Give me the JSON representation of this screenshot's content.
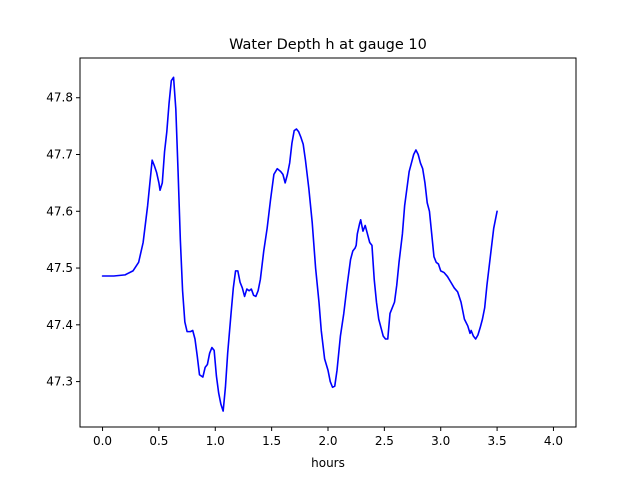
{
  "chart_data": {
    "type": "line",
    "title": "Water Depth h at gauge 10",
    "xlabel": "hours",
    "ylabel": "",
    "xlim": [
      -0.2,
      4.2
    ],
    "ylim": [
      47.22,
      47.87
    ],
    "xticks": [
      0.0,
      0.5,
      1.0,
      1.5,
      2.0,
      2.5,
      3.0,
      3.5,
      4.0
    ],
    "xtick_labels": [
      "0.0",
      "0.5",
      "1.0",
      "1.5",
      "2.0",
      "2.5",
      "3.0",
      "3.5",
      "4.0"
    ],
    "yticks": [
      47.3,
      47.4,
      47.5,
      47.6,
      47.7,
      47.8
    ],
    "ytick_labels": [
      "47.3",
      "47.4",
      "47.5",
      "47.6",
      "47.7",
      "47.8"
    ],
    "grid": false,
    "legend": "none",
    "series": [
      {
        "color": "#0000ff",
        "points": [
          [
            0.0,
            47.486
          ],
          [
            0.1,
            47.486
          ],
          [
            0.2,
            47.488
          ],
          [
            0.27,
            47.495
          ],
          [
            0.32,
            47.51
          ],
          [
            0.36,
            47.545
          ],
          [
            0.4,
            47.61
          ],
          [
            0.44,
            47.69
          ],
          [
            0.46,
            47.68
          ],
          [
            0.48,
            47.668
          ],
          [
            0.5,
            47.65
          ],
          [
            0.51,
            47.637
          ],
          [
            0.53,
            47.65
          ],
          [
            0.55,
            47.705
          ],
          [
            0.57,
            47.74
          ],
          [
            0.59,
            47.79
          ],
          [
            0.61,
            47.83
          ],
          [
            0.63,
            47.836
          ],
          [
            0.65,
            47.78
          ],
          [
            0.67,
            47.67
          ],
          [
            0.69,
            47.55
          ],
          [
            0.71,
            47.46
          ],
          [
            0.73,
            47.405
          ],
          [
            0.75,
            47.388
          ],
          [
            0.78,
            47.388
          ],
          [
            0.8,
            47.39
          ],
          [
            0.82,
            47.375
          ],
          [
            0.84,
            47.345
          ],
          [
            0.86,
            47.312
          ],
          [
            0.89,
            47.308
          ],
          [
            0.91,
            47.325
          ],
          [
            0.93,
            47.33
          ],
          [
            0.95,
            47.35
          ],
          [
            0.97,
            47.36
          ],
          [
            0.99,
            47.355
          ],
          [
            1.01,
            47.31
          ],
          [
            1.03,
            47.28
          ],
          [
            1.05,
            47.26
          ],
          [
            1.07,
            47.248
          ],
          [
            1.09,
            47.29
          ],
          [
            1.11,
            47.35
          ],
          [
            1.14,
            47.42
          ],
          [
            1.16,
            47.465
          ],
          [
            1.18,
            47.495
          ],
          [
            1.2,
            47.495
          ],
          [
            1.22,
            47.475
          ],
          [
            1.24,
            47.465
          ],
          [
            1.26,
            47.45
          ],
          [
            1.28,
            47.463
          ],
          [
            1.3,
            47.46
          ],
          [
            1.32,
            47.463
          ],
          [
            1.34,
            47.452
          ],
          [
            1.36,
            47.45
          ],
          [
            1.38,
            47.46
          ],
          [
            1.4,
            47.48
          ],
          [
            1.43,
            47.53
          ],
          [
            1.46,
            47.57
          ],
          [
            1.49,
            47.62
          ],
          [
            1.52,
            47.665
          ],
          [
            1.55,
            47.675
          ],
          [
            1.58,
            47.67
          ],
          [
            1.6,
            47.665
          ],
          [
            1.62,
            47.65
          ],
          [
            1.64,
            47.665
          ],
          [
            1.66,
            47.685
          ],
          [
            1.68,
            47.72
          ],
          [
            1.7,
            47.742
          ],
          [
            1.72,
            47.745
          ],
          [
            1.74,
            47.74
          ],
          [
            1.76,
            47.73
          ],
          [
            1.78,
            47.718
          ],
          [
            1.8,
            47.69
          ],
          [
            1.83,
            47.64
          ],
          [
            1.86,
            47.58
          ],
          [
            1.89,
            47.5
          ],
          [
            1.92,
            47.44
          ],
          [
            1.94,
            47.39
          ],
          [
            1.97,
            47.34
          ],
          [
            2.0,
            47.32
          ],
          [
            2.02,
            47.3
          ],
          [
            2.04,
            47.29
          ],
          [
            2.06,
            47.292
          ],
          [
            2.08,
            47.32
          ],
          [
            2.11,
            47.38
          ],
          [
            2.14,
            47.42
          ],
          [
            2.17,
            47.47
          ],
          [
            2.2,
            47.515
          ],
          [
            2.22,
            47.53
          ],
          [
            2.24,
            47.535
          ],
          [
            2.25,
            47.54
          ],
          [
            2.26,
            47.56
          ],
          [
            2.28,
            47.578
          ],
          [
            2.29,
            47.585
          ],
          [
            2.31,
            47.565
          ],
          [
            2.33,
            47.575
          ],
          [
            2.35,
            47.56
          ],
          [
            2.37,
            47.545
          ],
          [
            2.39,
            47.54
          ],
          [
            2.41,
            47.48
          ],
          [
            2.43,
            47.44
          ],
          [
            2.45,
            47.41
          ],
          [
            2.47,
            47.395
          ],
          [
            2.49,
            47.38
          ],
          [
            2.51,
            47.375
          ],
          [
            2.53,
            47.375
          ],
          [
            2.55,
            47.42
          ],
          [
            2.57,
            47.43
          ],
          [
            2.59,
            47.44
          ],
          [
            2.61,
            47.47
          ],
          [
            2.63,
            47.51
          ],
          [
            2.66,
            47.56
          ],
          [
            2.68,
            47.61
          ],
          [
            2.7,
            47.64
          ],
          [
            2.72,
            47.67
          ],
          [
            2.74,
            47.685
          ],
          [
            2.76,
            47.7
          ],
          [
            2.78,
            47.708
          ],
          [
            2.8,
            47.7
          ],
          [
            2.82,
            47.685
          ],
          [
            2.84,
            47.675
          ],
          [
            2.86,
            47.65
          ],
          [
            2.88,
            47.615
          ],
          [
            2.9,
            47.6
          ],
          [
            2.92,
            47.56
          ],
          [
            2.94,
            47.52
          ],
          [
            2.96,
            47.51
          ],
          [
            2.98,
            47.507
          ],
          [
            3.0,
            47.495
          ],
          [
            3.03,
            47.492
          ],
          [
            3.06,
            47.485
          ],
          [
            3.09,
            47.475
          ],
          [
            3.12,
            47.465
          ],
          [
            3.15,
            47.458
          ],
          [
            3.18,
            47.44
          ],
          [
            3.21,
            47.41
          ],
          [
            3.24,
            47.398
          ],
          [
            3.26,
            47.385
          ],
          [
            3.27,
            47.39
          ],
          [
            3.29,
            47.38
          ],
          [
            3.31,
            47.375
          ],
          [
            3.33,
            47.382
          ],
          [
            3.35,
            47.395
          ],
          [
            3.37,
            47.41
          ],
          [
            3.39,
            47.43
          ],
          [
            3.41,
            47.47
          ],
          [
            3.44,
            47.52
          ],
          [
            3.47,
            47.57
          ],
          [
            3.5,
            47.6
          ]
        ]
      }
    ]
  }
}
